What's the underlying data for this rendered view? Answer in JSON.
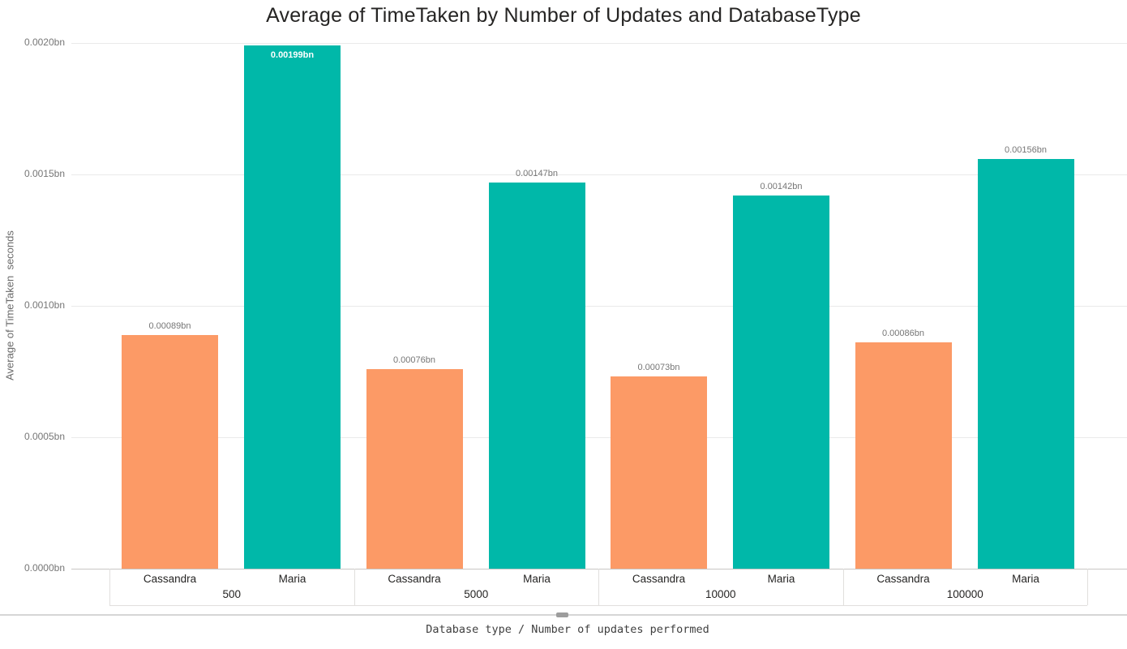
{
  "title": "Average of TimeTaken by Number of Updates and DatabaseType",
  "y_axis": {
    "title": "Average of TimeTaken  seconds",
    "ticks": [
      {
        "label": "0.0020bn",
        "value": 0.002
      },
      {
        "label": "0.0015bn",
        "value": 0.0015
      },
      {
        "label": "0.0010bn",
        "value": 0.001
      },
      {
        "label": "0.0005bn",
        "value": 0.0005
      },
      {
        "label": "0.0000bn",
        "value": 0.0
      }
    ]
  },
  "x_axis": {
    "title": "Database type / Number of updates performed"
  },
  "chart_data": {
    "type": "bar",
    "title": "Average of TimeTaken by Number of Updates and DatabaseType",
    "xlabel": "Database type / Number of updates performed",
    "ylabel": "Average of TimeTaken  seconds",
    "ylim": [
      0,
      0.002
    ],
    "grid": true,
    "legend_position": "none",
    "value_unit_suffix": "bn",
    "categories": [
      "500",
      "5000",
      "10000",
      "100000"
    ],
    "series": [
      {
        "name": "Cassandra",
        "color": "#FC9A66",
        "values": [
          0.00089,
          0.00076,
          0.00073,
          0.00086
        ],
        "labels": [
          "0.00089bn",
          "0.00076bn",
          "0.00073bn",
          "0.00086bn"
        ]
      },
      {
        "name": "Maria",
        "color": "#00B8A9",
        "values": [
          0.00199,
          0.00147,
          0.00142,
          0.00156
        ],
        "labels": [
          "0.00199bn",
          "0.00147bn",
          "0.00142bn",
          "0.00156bn"
        ]
      }
    ]
  },
  "scrollbar": {
    "orientation": "horizontal"
  },
  "colors": {
    "cassandra_bar": "#FC9A66",
    "maria_bar": "#00B8A9",
    "gridline": "#EAEAEA",
    "axis_line": "#C8C6C4",
    "tick_text": "#767676",
    "category_text": "#252423",
    "title_text": "#252423"
  }
}
